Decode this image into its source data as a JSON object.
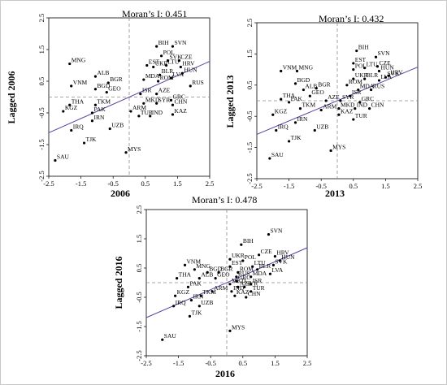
{
  "chart_data": [
    {
      "type": "scatter",
      "title": "Moran’s I: 0.451",
      "xlabel": "2006",
      "ylabel": "Lagged 2006",
      "xticks": [
        "-2.5",
        "-1.5",
        "-0.5",
        "0.5",
        "1.5",
        "2.5"
      ],
      "yticks": [
        "2.5",
        "1.5",
        "0.5",
        "-0.5",
        "-1.5",
        "-2.5"
      ],
      "xlim": [
        -2.5,
        2.5
      ],
      "ylim": [
        -2.5,
        2.5
      ],
      "reference_lines": {
        "x": 0,
        "y": 0
      },
      "slope": 0.451,
      "points": [
        {
          "label": "BIH",
          "x": 0.85,
          "y": 1.6
        },
        {
          "label": "SVN",
          "x": 1.35,
          "y": 1.6
        },
        {
          "label": "POL",
          "x": 1.0,
          "y": 1.3
        },
        {
          "label": "SVK",
          "x": 1.2,
          "y": 1.15
        },
        {
          "label": "CZE",
          "x": 1.55,
          "y": 1.15
        },
        {
          "label": "EST",
          "x": 0.55,
          "y": 1.0
        },
        {
          "label": "LTU",
          "x": 1.15,
          "y": 1.0
        },
        {
          "label": "UKR",
          "x": 0.75,
          "y": 0.95
        },
        {
          "label": "HRV",
          "x": 1.6,
          "y": 0.95
        },
        {
          "label": "HUN",
          "x": 1.65,
          "y": 0.75
        },
        {
          "label": "BLR",
          "x": 0.95,
          "y": 0.7
        },
        {
          "label": "LVA",
          "x": 1.3,
          "y": 0.6
        },
        {
          "label": "MNG",
          "x": -1.85,
          "y": 1.05
        },
        {
          "label": "ALB",
          "x": -1.05,
          "y": 0.65
        },
        {
          "label": "BGR",
          "x": -0.65,
          "y": 0.45
        },
        {
          "label": "MDA",
          "x": 0.45,
          "y": 0.55
        },
        {
          "label": "ROM",
          "x": 0.9,
          "y": 0.5
        },
        {
          "label": "RUS",
          "x": 1.9,
          "y": 0.35
        },
        {
          "label": "VNM",
          "x": -1.8,
          "y": 0.35
        },
        {
          "label": "BGD",
          "x": -1.05,
          "y": 0.25
        },
        {
          "label": "GEO",
          "x": -0.7,
          "y": 0.15
        },
        {
          "label": "ISR",
          "x": 0.35,
          "y": 0.1
        },
        {
          "label": "AZE",
          "x": 0.85,
          "y": 0.1
        },
        {
          "label": "GRC",
          "x": 1.3,
          "y": -0.1
        },
        {
          "label": "THA",
          "x": -1.85,
          "y": -0.25
        },
        {
          "label": "TKM",
          "x": -1.05,
          "y": -0.25
        },
        {
          "label": "MKD",
          "x": 0.45,
          "y": -0.2
        },
        {
          "label": "SYR",
          "x": 0.85,
          "y": -0.2
        },
        {
          "label": "CHN",
          "x": 1.35,
          "y": -0.25
        },
        {
          "label": "KGZ",
          "x": -2.05,
          "y": -0.45
        },
        {
          "label": "PAK",
          "x": -1.15,
          "y": -0.5
        },
        {
          "label": "ARM",
          "x": 0.05,
          "y": -0.45
        },
        {
          "label": "TUR",
          "x": 0.3,
          "y": -0.6
        },
        {
          "label": "IND",
          "x": 0.65,
          "y": -0.6
        },
        {
          "label": "KAZ",
          "x": 1.35,
          "y": -0.55
        },
        {
          "label": "IRN",
          "x": -1.15,
          "y": -0.75
        },
        {
          "label": "IRQ",
          "x": -1.8,
          "y": -1.05
        },
        {
          "label": "UZB",
          "x": -0.6,
          "y": -1.0
        },
        {
          "label": "TJK",
          "x": -1.4,
          "y": -1.45
        },
        {
          "label": "MYS",
          "x": -0.1,
          "y": -1.75
        },
        {
          "label": "SAU",
          "x": -2.3,
          "y": -2.0
        }
      ]
    },
    {
      "type": "scatter",
      "title": "Moran’s I: 0.432",
      "xlabel": "2013",
      "ylabel": "Lagged 2013",
      "xticks": [
        "-2.5",
        "-1.5",
        "-0.5",
        "0.5",
        "1.5",
        "2.5"
      ],
      "yticks": [
        "2.5",
        "1.5",
        "0.5",
        "-0.5",
        "-1.5",
        "-2.5"
      ],
      "xlim": [
        -2.5,
        2.5
      ],
      "ylim": [
        -2.5,
        2.5
      ],
      "reference_lines": {
        "x": 0,
        "y": 0
      },
      "slope": 0.432,
      "points": [
        {
          "label": "BIH",
          "x": 0.6,
          "y": 1.6
        },
        {
          "label": "SVN",
          "x": 1.2,
          "y": 1.4
        },
        {
          "label": "LTU",
          "x": 0.85,
          "y": 1.05
        },
        {
          "label": "CZE",
          "x": 1.25,
          "y": 1.1
        },
        {
          "label": "EST",
          "x": 0.5,
          "y": 1.2
        },
        {
          "label": "POL",
          "x": 0.5,
          "y": 1.0
        },
        {
          "label": "HUN",
          "x": 1.3,
          "y": 0.95
        },
        {
          "label": "HRV",
          "x": 1.6,
          "y": 0.8
        },
        {
          "label": "UKR",
          "x": 0.5,
          "y": 0.7
        },
        {
          "label": "BLR",
          "x": 0.85,
          "y": 0.7
        },
        {
          "label": "LVA",
          "x": 1.3,
          "y": 0.65
        },
        {
          "label": "SVK",
          "x": 1.5,
          "y": 0.75
        },
        {
          "label": "VNM",
          "x": -1.75,
          "y": 0.95
        },
        {
          "label": "MNG",
          "x": -1.25,
          "y": 0.95
        },
        {
          "label": "BGD",
          "x": -1.3,
          "y": 0.55
        },
        {
          "label": "BGR",
          "x": -0.65,
          "y": 0.4
        },
        {
          "label": "ROM",
          "x": 0.3,
          "y": 0.5
        },
        {
          "label": "ALB",
          "x": -1.05,
          "y": 0.35
        },
        {
          "label": "MDA",
          "x": 0.65,
          "y": 0.35
        },
        {
          "label": "RUS",
          "x": 1.05,
          "y": 0.35
        },
        {
          "label": "GEO",
          "x": -0.85,
          "y": 0.15
        },
        {
          "label": "ISR",
          "x": 0.4,
          "y": 0.15
        },
        {
          "label": "THA",
          "x": -1.75,
          "y": 0.05
        },
        {
          "label": "PAK",
          "x": -1.5,
          "y": -0.05
        },
        {
          "label": "SYR",
          "x": 0.1,
          "y": 0.0
        },
        {
          "label": "AZE",
          "x": -0.35,
          "y": 0.0
        },
        {
          "label": "GRC",
          "x": 0.7,
          "y": -0.05
        },
        {
          "label": "TKM",
          "x": -1.15,
          "y": -0.25
        },
        {
          "label": "ARM",
          "x": -0.5,
          "y": -0.3
        },
        {
          "label": "MKD",
          "x": 0.05,
          "y": -0.25
        },
        {
          "label": "IND",
          "x": 0.55,
          "y": -0.25
        },
        {
          "label": "CHN",
          "x": 1.0,
          "y": -0.25
        },
        {
          "label": "KGZ",
          "x": -2.0,
          "y": -0.45
        },
        {
          "label": "KAZ",
          "x": 0.05,
          "y": -0.45
        },
        {
          "label": "TUR",
          "x": 0.5,
          "y": -0.6
        },
        {
          "label": "IRN",
          "x": -1.3,
          "y": -0.7
        },
        {
          "label": "IRQ",
          "x": -1.9,
          "y": -0.95
        },
        {
          "label": "UZB",
          "x": -0.7,
          "y": -0.95
        },
        {
          "label": "TJK",
          "x": -1.5,
          "y": -1.3
        },
        {
          "label": "MYS",
          "x": -0.2,
          "y": -1.6
        },
        {
          "label": "SAU",
          "x": -2.1,
          "y": -1.85
        }
      ]
    },
    {
      "type": "scatter",
      "title": "Moran’s I: 0.478",
      "xlabel": "2016",
      "ylabel": "Lagged 2016",
      "xticks": [
        "-2.5",
        "-1.5",
        "-0.5",
        "0.5",
        "1.5",
        "2.5"
      ],
      "yticks": [
        "2.5",
        "1.5",
        "0.5",
        "-0.5",
        "-1.5",
        "-2.5"
      ],
      "xlim": [
        -2.5,
        2.5
      ],
      "ylim": [
        -2.5,
        2.5
      ],
      "reference_lines": {
        "x": 0,
        "y": 0
      },
      "slope": 0.478,
      "points": [
        {
          "label": "SVN",
          "x": 1.3,
          "y": 1.65
        },
        {
          "label": "BIH",
          "x": 0.45,
          "y": 1.3
        },
        {
          "label": "CZE",
          "x": 1.0,
          "y": 0.95
        },
        {
          "label": "HRV",
          "x": 1.5,
          "y": 0.9
        },
        {
          "label": "UKR",
          "x": 0.1,
          "y": 0.8
        },
        {
          "label": "POL",
          "x": 0.5,
          "y": 0.75
        },
        {
          "label": "HUN",
          "x": 1.65,
          "y": 0.75
        },
        {
          "label": "SVK",
          "x": 1.45,
          "y": 0.6
        },
        {
          "label": "EST",
          "x": 0.1,
          "y": 0.55
        },
        {
          "label": "LTU",
          "x": 0.8,
          "y": 0.55
        },
        {
          "label": "BLR",
          "x": 0.95,
          "y": 0.45
        },
        {
          "label": "VNM",
          "x": -1.3,
          "y": 0.6
        },
        {
          "label": "MNG",
          "x": -1.0,
          "y": 0.45
        },
        {
          "label": "BGD",
          "x": -0.6,
          "y": 0.35
        },
        {
          "label": "BGR",
          "x": -0.25,
          "y": 0.35
        },
        {
          "label": "ROM",
          "x": 0.35,
          "y": 0.35
        },
        {
          "label": "RUS",
          "x": 0.3,
          "y": 0.2
        },
        {
          "label": "MDA",
          "x": 0.75,
          "y": 0.2
        },
        {
          "label": "LVA",
          "x": 1.35,
          "y": 0.3
        },
        {
          "label": "THA",
          "x": -1.55,
          "y": 0.15
        },
        {
          "label": "ALB",
          "x": -0.85,
          "y": 0.15
        },
        {
          "label": "GEO",
          "x": -0.35,
          "y": 0.15
        },
        {
          "label": "GRC",
          "x": 0.3,
          "y": 0.05
        },
        {
          "label": "MKD",
          "x": 0.1,
          "y": -0.05
        },
        {
          "label": "ISR",
          "x": 0.75,
          "y": -0.05
        },
        {
          "label": "PAK",
          "x": -1.2,
          "y": -0.15
        },
        {
          "label": "AZE",
          "x": 0.35,
          "y": -0.15
        },
        {
          "label": "SYR",
          "x": 0.55,
          "y": -0.15
        },
        {
          "label": "TUR",
          "x": 0.75,
          "y": -0.3
        },
        {
          "label": "ARM",
          "x": -0.45,
          "y": -0.3
        },
        {
          "label": "IND",
          "x": 0.15,
          "y": -0.3
        },
        {
          "label": "KGZ",
          "x": -1.6,
          "y": -0.45
        },
        {
          "label": "TKM",
          "x": -0.8,
          "y": -0.45
        },
        {
          "label": "KAZ",
          "x": 0.25,
          "y": -0.45
        },
        {
          "label": "CHN",
          "x": 0.6,
          "y": -0.5
        },
        {
          "label": "IRN",
          "x": -1.1,
          "y": -0.6
        },
        {
          "label": "IRQ",
          "x": -1.65,
          "y": -0.8
        },
        {
          "label": "UZB",
          "x": -0.85,
          "y": -0.8
        },
        {
          "label": "TJK",
          "x": -1.15,
          "y": -1.15
        },
        {
          "label": "MYS",
          "x": 0.1,
          "y": -1.65
        },
        {
          "label": "SAU",
          "x": -2.0,
          "y": -1.95
        }
      ]
    }
  ]
}
